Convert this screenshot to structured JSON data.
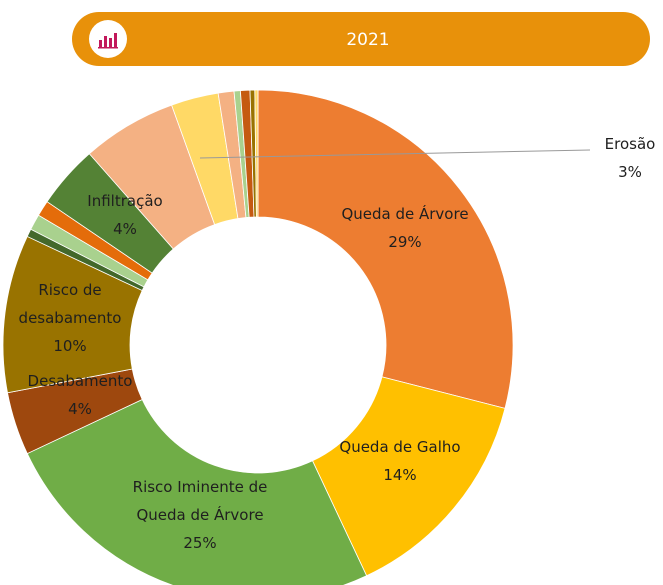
{
  "chart_data": {
    "type": "donut",
    "title": "2021",
    "categories": [
      "Queda de Árvore",
      "Queda de Galho",
      "Risco Iminente de Queda de Árvore",
      "Desabamento",
      "Risco de desabamento",
      null,
      null,
      null,
      "Infiltração",
      null,
      "Erosão",
      null,
      null,
      null,
      null,
      null
    ],
    "values": [
      29,
      14,
      25,
      4,
      10,
      0.5,
      1,
      1,
      4,
      6,
      3,
      1,
      0.4,
      0.6,
      0.3,
      0.2
    ],
    "value_labels": [
      "29%",
      "14%",
      "25%",
      "4%",
      "10%",
      null,
      null,
      null,
      "4%",
      null,
      "3%",
      null,
      null,
      null,
      null,
      null
    ],
    "colors": [
      "#ED7D31",
      "#FFC000",
      "#70AD47",
      "#9E480E",
      "#997300",
      "#43682B",
      "#A9D18E",
      "#E46C0A",
      "#548235",
      "#F4B183",
      "#FFD966",
      "#F4B183",
      "#A9D18E",
      "#C55A11",
      "#997300",
      "#FFD966"
    ]
  }
}
